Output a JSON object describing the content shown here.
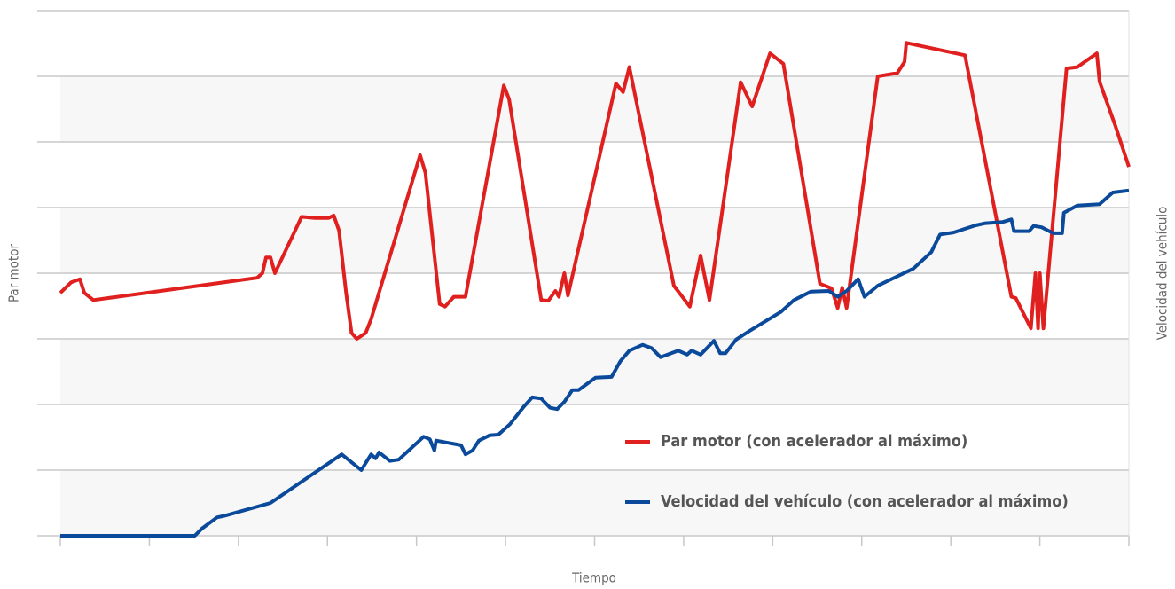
{
  "chart_data": {
    "type": "line",
    "x_label": "Tiempo",
    "y_label": "Par motor",
    "y2_label": "Velocidad del vehículo",
    "xlim": [
      0,
      12
    ],
    "xticks": [
      0,
      1,
      2,
      3,
      4,
      5,
      6,
      7,
      8,
      9,
      10,
      11,
      12
    ],
    "ylim": [
      0,
      8
    ],
    "yticks": [
      0,
      1,
      2,
      3,
      4,
      5,
      6,
      7,
      8
    ],
    "y2lim": [
      0,
      8
    ],
    "grid": true,
    "legend": "lower right",
    "series": [
      {
        "name": "Par motor (con acelerador al máximo)",
        "color": "#e0201f",
        "x": [
          0,
          0.12,
          0.22,
          0.27,
          0.37,
          2.21,
          2.27,
          2.31,
          2.36,
          2.41,
          2.71,
          2.86,
          3.01,
          3.07,
          3.13,
          3.21,
          3.27,
          3.33,
          3.43,
          3.49,
          4.04,
          4.1,
          4.26,
          4.32,
          4.42,
          4.55,
          4.98,
          5.04,
          5.4,
          5.48,
          5.56,
          5.6,
          5.66,
          5.7,
          6.24,
          6.32,
          6.39,
          6.89,
          7.07,
          7.19,
          7.29,
          7.64,
          7.77,
          7.97,
          8.12,
          8.53,
          8.66,
          8.73,
          8.78,
          8.83,
          9.18,
          9.4,
          9.48,
          9.5,
          10.16,
          10.68,
          10.73,
          10.9,
          10.95,
          10.98,
          11.0,
          11.04,
          11.3,
          11.42,
          11.64,
          11.67,
          11.85,
          12.0
        ],
        "values": [
          3.7,
          3.86,
          3.91,
          3.7,
          3.59,
          3.93,
          4.0,
          4.24,
          4.24,
          4.0,
          4.86,
          4.84,
          4.84,
          4.88,
          4.65,
          3.7,
          3.09,
          3.0,
          3.09,
          3.3,
          5.8,
          5.53,
          3.53,
          3.49,
          3.64,
          3.64,
          6.86,
          6.65,
          3.59,
          3.58,
          3.73,
          3.64,
          4.0,
          3.66,
          6.89,
          6.76,
          7.14,
          3.81,
          3.49,
          4.27,
          3.59,
          6.91,
          6.54,
          7.35,
          7.19,
          3.84,
          3.77,
          3.47,
          3.78,
          3.47,
          7.0,
          7.05,
          7.22,
          7.51,
          7.32,
          3.64,
          3.62,
          3.16,
          4.0,
          3.16,
          4.0,
          3.16,
          7.12,
          7.14,
          7.35,
          6.92,
          6.24,
          5.62
        ]
      },
      {
        "name": "Velocidad del vehículo (con acelerador al máximo)",
        "color": "#0b4a9b",
        "axis": "y2",
        "x": [
          0,
          1.51,
          1.59,
          1.76,
          1.86,
          2.36,
          3.16,
          3.38,
          3.49,
          3.54,
          3.58,
          3.7,
          3.8,
          4.0,
          4.08,
          4.15,
          4.2,
          4.22,
          4.5,
          4.55,
          4.63,
          4.7,
          4.82,
          4.92,
          5.05,
          5.2,
          5.3,
          5.4,
          5.5,
          5.58,
          5.66,
          5.75,
          5.82,
          6.01,
          6.19,
          6.29,
          6.39,
          6.54,
          6.64,
          6.74,
          6.94,
          7.04,
          7.09,
          7.19,
          7.34,
          7.41,
          7.47,
          7.59,
          7.74,
          8.09,
          8.24,
          8.43,
          8.63,
          8.73,
          8.83,
          8.96,
          9.03,
          9.18,
          9.58,
          9.78,
          9.88,
          10.03,
          10.28,
          10.38,
          10.58,
          10.68,
          10.71,
          10.88,
          10.93,
          11.02,
          11.15,
          11.25,
          11.27,
          11.42,
          11.67,
          11.82,
          12.0
        ],
        "values": [
          0,
          0,
          0.11,
          0.28,
          0.31,
          0.5,
          1.24,
          1.0,
          1.24,
          1.18,
          1.27,
          1.14,
          1.16,
          1.41,
          1.51,
          1.47,
          1.3,
          1.45,
          1.38,
          1.24,
          1.3,
          1.45,
          1.53,
          1.54,
          1.7,
          1.96,
          2.11,
          2.09,
          1.95,
          1.93,
          2.04,
          2.22,
          2.22,
          2.41,
          2.42,
          2.66,
          2.82,
          2.91,
          2.86,
          2.72,
          2.82,
          2.76,
          2.82,
          2.76,
          2.97,
          2.78,
          2.78,
          2.99,
          3.12,
          3.41,
          3.59,
          3.72,
          3.73,
          3.64,
          3.73,
          3.91,
          3.64,
          3.81,
          4.07,
          4.32,
          4.59,
          4.62,
          4.73,
          4.76,
          4.78,
          4.82,
          4.64,
          4.64,
          4.72,
          4.7,
          4.61,
          4.61,
          4.92,
          5.03,
          5.05,
          5.23,
          5.26
        ]
      }
    ]
  }
}
